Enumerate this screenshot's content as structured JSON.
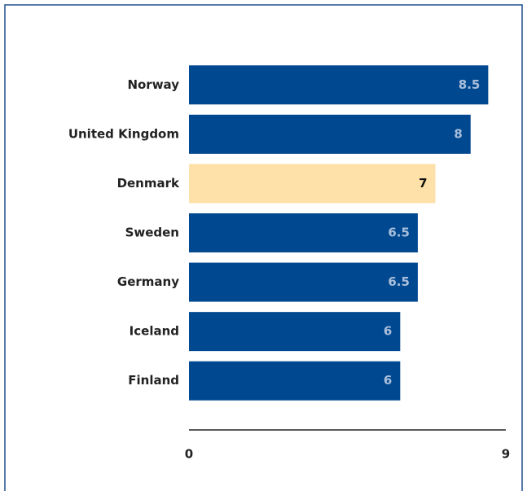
{
  "chart_data": {
    "type": "bar",
    "orientation": "horizontal",
    "categories": [
      "Norway",
      "United Kingdom",
      "Denmark",
      "Sweden",
      "Germany",
      "Iceland",
      "Finland"
    ],
    "values": [
      8.5,
      8,
      7,
      6.5,
      6.5,
      6,
      6
    ],
    "colors": [
      "#004990",
      "#004990",
      "#fde1a8",
      "#004990",
      "#004990",
      "#004990",
      "#004990"
    ],
    "xlim": [
      0,
      9
    ],
    "xticks": [
      0,
      9
    ],
    "grid": false
  }
}
